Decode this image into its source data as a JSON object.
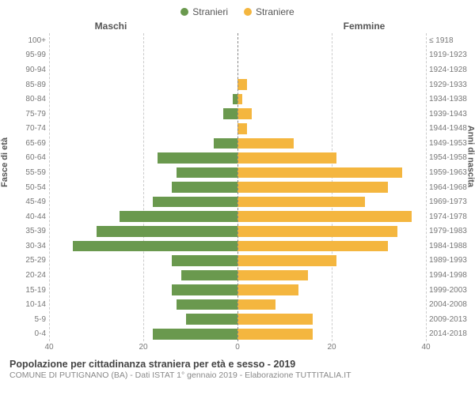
{
  "legend": {
    "male": {
      "label": "Stranieri",
      "color": "#6a994e"
    },
    "female": {
      "label": "Straniere",
      "color": "#f4b63f"
    }
  },
  "column_titles": {
    "left": "Maschi",
    "right": "Femmine"
  },
  "y_axis_left_title": "Fasce di età",
  "y_axis_right_title": "Anni di nascita",
  "x_axis": {
    "max": 40,
    "ticks": [
      40,
      20,
      0,
      20,
      40
    ]
  },
  "grid_color": "#cccccc",
  "background": "#ffffff",
  "rows": [
    {
      "age": "100+",
      "year": "≤ 1918",
      "m": 0,
      "f": 0
    },
    {
      "age": "95-99",
      "year": "1919-1923",
      "m": 0,
      "f": 0
    },
    {
      "age": "90-94",
      "year": "1924-1928",
      "m": 0,
      "f": 0
    },
    {
      "age": "85-89",
      "year": "1929-1933",
      "m": 0,
      "f": 2
    },
    {
      "age": "80-84",
      "year": "1934-1938",
      "m": 1,
      "f": 1
    },
    {
      "age": "75-79",
      "year": "1939-1943",
      "m": 3,
      "f": 3
    },
    {
      "age": "70-74",
      "year": "1944-1948",
      "m": 0,
      "f": 2
    },
    {
      "age": "65-69",
      "year": "1949-1953",
      "m": 5,
      "f": 12
    },
    {
      "age": "60-64",
      "year": "1954-1958",
      "m": 17,
      "f": 21
    },
    {
      "age": "55-59",
      "year": "1959-1963",
      "m": 13,
      "f": 35
    },
    {
      "age": "50-54",
      "year": "1964-1968",
      "m": 14,
      "f": 32
    },
    {
      "age": "45-49",
      "year": "1969-1973",
      "m": 18,
      "f": 27
    },
    {
      "age": "40-44",
      "year": "1974-1978",
      "m": 25,
      "f": 37
    },
    {
      "age": "35-39",
      "year": "1979-1983",
      "m": 30,
      "f": 34
    },
    {
      "age": "30-34",
      "year": "1984-1988",
      "m": 35,
      "f": 32
    },
    {
      "age": "25-29",
      "year": "1989-1993",
      "m": 14,
      "f": 21
    },
    {
      "age": "20-24",
      "year": "1994-1998",
      "m": 12,
      "f": 15
    },
    {
      "age": "15-19",
      "year": "1999-2003",
      "m": 14,
      "f": 13
    },
    {
      "age": "10-14",
      "year": "2004-2008",
      "m": 13,
      "f": 8
    },
    {
      "age": "5-9",
      "year": "2009-2013",
      "m": 11,
      "f": 16
    },
    {
      "age": "0-4",
      "year": "2014-2018",
      "m": 18,
      "f": 16
    }
  ],
  "footer": {
    "title": "Popolazione per cittadinanza straniera per età e sesso - 2019",
    "subtitle": "COMUNE DI PUTIGNANO (BA) - Dati ISTAT 1° gennaio 2019 - Elaborazione TUTTITALIA.IT"
  }
}
